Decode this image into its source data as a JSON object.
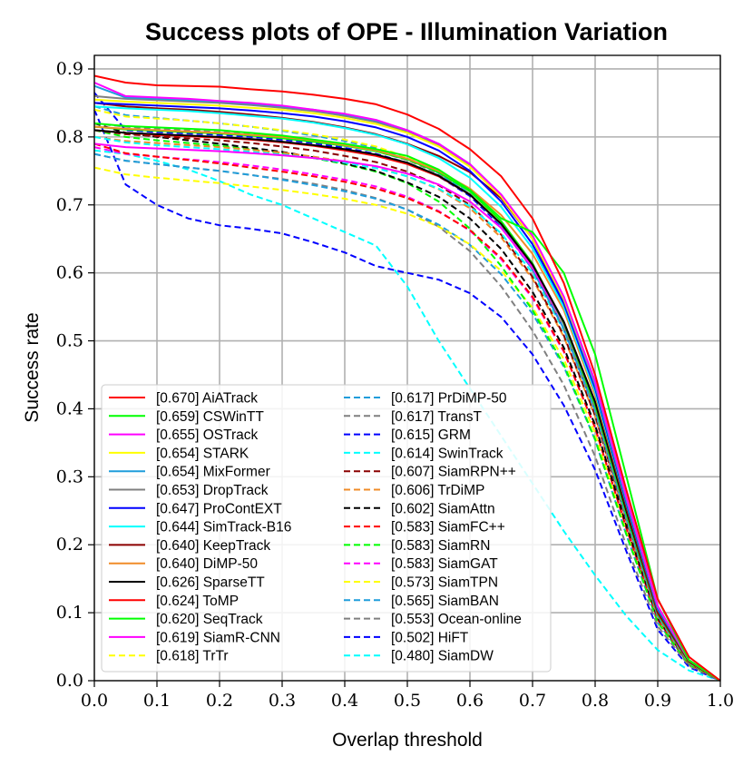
{
  "chart_data": {
    "type": "line",
    "title": "Success plots of OPE - Illumination Variation",
    "xlabel": "Overlap threshold",
    "ylabel": "Success rate",
    "xlim": [
      0.0,
      1.0
    ],
    "ylim": [
      0.0,
      0.92
    ],
    "xticks": [
      "0.0",
      "0.1",
      "0.2",
      "0.3",
      "0.4",
      "0.5",
      "0.6",
      "0.7",
      "0.8",
      "0.9",
      "1.0"
    ],
    "yticks": [
      "0.0",
      "0.1",
      "0.2",
      "0.3",
      "0.4",
      "0.5",
      "0.6",
      "0.7",
      "0.8",
      "0.9"
    ],
    "grid": true,
    "legend_position": "lower-left",
    "x": [
      0,
      0.05,
      0.1,
      0.15,
      0.2,
      0.25,
      0.3,
      0.35,
      0.4,
      0.45,
      0.5,
      0.55,
      0.6,
      0.65,
      0.7,
      0.75,
      0.8,
      0.85,
      0.9,
      0.95,
      1.0
    ],
    "series": [
      {
        "name": "[0.670] AiATrack",
        "color": "#ff0000",
        "dash": "solid",
        "values": [
          0.89,
          0.88,
          0.876,
          0.875,
          0.874,
          0.87,
          0.867,
          0.862,
          0.856,
          0.848,
          0.833,
          0.812,
          0.782,
          0.742,
          0.68,
          0.585,
          0.45,
          0.28,
          0.12,
          0.035,
          0.0
        ]
      },
      {
        "name": "[0.659] CSWinTT",
        "color": "#00ff00",
        "dash": "solid",
        "values": [
          0.82,
          0.816,
          0.814,
          0.812,
          0.81,
          0.806,
          0.802,
          0.796,
          0.79,
          0.782,
          0.772,
          0.752,
          0.722,
          0.68,
          0.66,
          0.6,
          0.48,
          0.3,
          0.12,
          0.03,
          0.0
        ]
      },
      {
        "name": "[0.655] OSTrack",
        "color": "#ff00ff",
        "dash": "solid",
        "values": [
          0.88,
          0.86,
          0.858,
          0.856,
          0.853,
          0.85,
          0.846,
          0.84,
          0.834,
          0.825,
          0.81,
          0.79,
          0.76,
          0.715,
          0.655,
          0.565,
          0.44,
          0.27,
          0.11,
          0.03,
          0.0
        ]
      },
      {
        "name": "[0.654] STARK",
        "color": "#ffff00",
        "dash": "solid",
        "values": [
          0.855,
          0.852,
          0.85,
          0.848,
          0.846,
          0.843,
          0.84,
          0.835,
          0.828,
          0.819,
          0.806,
          0.786,
          0.756,
          0.712,
          0.65,
          0.562,
          0.44,
          0.27,
          0.11,
          0.03,
          0.0
        ]
      },
      {
        "name": "[0.654] MixFormer",
        "color": "#1f9ddb",
        "dash": "solid",
        "values": [
          0.875,
          0.858,
          0.856,
          0.854,
          0.852,
          0.849,
          0.845,
          0.84,
          0.833,
          0.824,
          0.81,
          0.79,
          0.76,
          0.715,
          0.652,
          0.562,
          0.435,
          0.265,
          0.108,
          0.03,
          0.0
        ]
      },
      {
        "name": "[0.653] DropTrack",
        "color": "#808080",
        "dash": "solid",
        "values": [
          0.86,
          0.856,
          0.854,
          0.852,
          0.85,
          0.847,
          0.843,
          0.838,
          0.831,
          0.822,
          0.808,
          0.788,
          0.758,
          0.713,
          0.65,
          0.56,
          0.435,
          0.265,
          0.108,
          0.03,
          0.0
        ]
      },
      {
        "name": "[0.647] ProContEXT",
        "color": "#0000ff",
        "dash": "solid",
        "values": [
          0.85,
          0.848,
          0.846,
          0.844,
          0.842,
          0.839,
          0.835,
          0.83,
          0.823,
          0.814,
          0.8,
          0.78,
          0.75,
          0.705,
          0.642,
          0.555,
          0.43,
          0.262,
          0.106,
          0.03,
          0.0
        ]
      },
      {
        "name": "[0.644] SimTrack-B16",
        "color": "#00ffff",
        "dash": "solid",
        "values": [
          0.845,
          0.842,
          0.84,
          0.838,
          0.835,
          0.831,
          0.827,
          0.821,
          0.813,
          0.803,
          0.789,
          0.769,
          0.74,
          0.697,
          0.636,
          0.55,
          0.425,
          0.26,
          0.105,
          0.03,
          0.0
        ]
      },
      {
        "name": "[0.640] KeepTrack",
        "color": "#8b0000",
        "dash": "solid",
        "values": [
          0.85,
          0.845,
          0.842,
          0.84,
          0.837,
          0.833,
          0.828,
          0.822,
          0.814,
          0.804,
          0.79,
          0.772,
          0.748,
          0.71,
          0.65,
          0.555,
          0.425,
          0.255,
          0.1,
          0.028,
          0.0
        ]
      },
      {
        "name": "[0.640] DiMP-50",
        "color": "#f08c28",
        "dash": "solid",
        "values": [
          0.815,
          0.812,
          0.81,
          0.808,
          0.806,
          0.803,
          0.8,
          0.795,
          0.788,
          0.78,
          0.768,
          0.75,
          0.724,
          0.685,
          0.628,
          0.545,
          0.42,
          0.255,
          0.1,
          0.028,
          0.0
        ]
      },
      {
        "name": "[0.626] SparseTT",
        "color": "#000000",
        "dash": "solid",
        "values": [
          0.81,
          0.806,
          0.804,
          0.802,
          0.8,
          0.797,
          0.793,
          0.788,
          0.782,
          0.774,
          0.762,
          0.743,
          0.715,
          0.672,
          0.612,
          0.528,
          0.41,
          0.25,
          0.1,
          0.028,
          0.0
        ]
      },
      {
        "name": "[0.624] ToMP",
        "color": "#ff0000",
        "dash": "solid",
        "values": [
          0.81,
          0.806,
          0.803,
          0.801,
          0.799,
          0.796,
          0.792,
          0.787,
          0.78,
          0.772,
          0.76,
          0.742,
          0.715,
          0.672,
          0.612,
          0.528,
          0.41,
          0.25,
          0.1,
          0.028,
          0.0
        ]
      },
      {
        "name": "[0.620] SeqTrack",
        "color": "#00ff00",
        "dash": "solid",
        "values": [
          0.815,
          0.811,
          0.809,
          0.807,
          0.805,
          0.802,
          0.798,
          0.793,
          0.787,
          0.779,
          0.767,
          0.748,
          0.72,
          0.676,
          0.614,
          0.526,
          0.405,
          0.245,
          0.098,
          0.027,
          0.0
        ]
      },
      {
        "name": "[0.619] SiamR-CNN",
        "color": "#ff00ff",
        "dash": "solid",
        "values": [
          0.79,
          0.785,
          0.783,
          0.781,
          0.779,
          0.776,
          0.773,
          0.769,
          0.764,
          0.757,
          0.746,
          0.73,
          0.705,
          0.666,
          0.608,
          0.525,
          0.405,
          0.245,
          0.098,
          0.027,
          0.0
        ]
      },
      {
        "name": "[0.618] TrTr",
        "color": "#ffff00",
        "dash": "dashed",
        "values": [
          0.84,
          0.83,
          0.827,
          0.824,
          0.82,
          0.815,
          0.81,
          0.804,
          0.796,
          0.786,
          0.77,
          0.75,
          0.72,
          0.675,
          0.612,
          0.525,
          0.405,
          0.245,
          0.098,
          0.027,
          0.0
        ]
      },
      {
        "name": "[0.617] PrDiMP-50",
        "color": "#1f9ddb",
        "dash": "dashed",
        "values": [
          0.845,
          0.832,
          0.828,
          0.824,
          0.82,
          0.815,
          0.809,
          0.802,
          0.794,
          0.784,
          0.768,
          0.747,
          0.716,
          0.67,
          0.605,
          0.518,
          0.398,
          0.24,
          0.096,
          0.027,
          0.0
        ]
      },
      {
        "name": "[0.617] TransT",
        "color": "#808080",
        "dash": "dashed",
        "values": [
          0.82,
          0.815,
          0.812,
          0.81,
          0.807,
          0.804,
          0.8,
          0.795,
          0.788,
          0.779,
          0.766,
          0.746,
          0.716,
          0.67,
          0.605,
          0.518,
          0.398,
          0.24,
          0.096,
          0.027,
          0.0
        ]
      },
      {
        "name": "[0.615] GRM",
        "color": "#0000ff",
        "dash": "dashed",
        "values": [
          0.865,
          0.81,
          0.807,
          0.805,
          0.803,
          0.8,
          0.796,
          0.791,
          0.784,
          0.775,
          0.762,
          0.742,
          0.713,
          0.668,
          0.605,
          0.518,
          0.398,
          0.24,
          0.096,
          0.027,
          0.0
        ]
      },
      {
        "name": "[0.614] SwinTrack",
        "color": "#00ffff",
        "dash": "dashed",
        "values": [
          0.8,
          0.792,
          0.788,
          0.785,
          0.782,
          0.778,
          0.774,
          0.769,
          0.762,
          0.754,
          0.742,
          0.724,
          0.698,
          0.658,
          0.6,
          0.515,
          0.396,
          0.238,
          0.095,
          0.026,
          0.0
        ]
      },
      {
        "name": "[0.607] SiamRPN++",
        "color": "#8b0000",
        "dash": "dashed",
        "values": [
          0.81,
          0.804,
          0.801,
          0.798,
          0.795,
          0.791,
          0.786,
          0.78,
          0.772,
          0.763,
          0.749,
          0.729,
          0.7,
          0.656,
          0.594,
          0.508,
          0.39,
          0.235,
          0.094,
          0.026,
          0.0
        ]
      },
      {
        "name": "[0.606] TrDiMP",
        "color": "#f08c28",
        "dash": "dashed",
        "values": [
          0.8,
          0.794,
          0.791,
          0.788,
          0.785,
          0.781,
          0.777,
          0.771,
          0.764,
          0.755,
          0.742,
          0.723,
          0.695,
          0.652,
          0.591,
          0.506,
          0.389,
          0.234,
          0.093,
          0.026,
          0.0
        ]
      },
      {
        "name": "[0.602] SiamAttn",
        "color": "#000000",
        "dash": "dashed",
        "values": [
          0.82,
          0.806,
          0.8,
          0.795,
          0.79,
          0.784,
          0.778,
          0.77,
          0.761,
          0.75,
          0.733,
          0.712,
          0.68,
          0.635,
          0.572,
          0.49,
          0.376,
          0.228,
          0.092,
          0.026,
          0.0
        ]
      },
      {
        "name": "[0.583] SiamFC++",
        "color": "#ff0000",
        "dash": "dashed",
        "values": [
          0.79,
          0.776,
          0.771,
          0.766,
          0.761,
          0.755,
          0.749,
          0.742,
          0.734,
          0.724,
          0.71,
          0.69,
          0.663,
          0.622,
          0.565,
          0.485,
          0.372,
          0.224,
          0.09,
          0.025,
          0.0
        ]
      },
      {
        "name": "[0.583] SiamRN",
        "color": "#00ff00",
        "dash": "dashed",
        "values": [
          0.81,
          0.8,
          0.795,
          0.791,
          0.787,
          0.782,
          0.776,
          0.769,
          0.76,
          0.749,
          0.732,
          0.705,
          0.665,
          0.61,
          0.545,
          0.465,
          0.355,
          0.215,
          0.086,
          0.024,
          0.0
        ]
      },
      {
        "name": "[0.583] SiamGAT",
        "color": "#ff00ff",
        "dash": "dashed",
        "values": [
          0.785,
          0.775,
          0.771,
          0.767,
          0.763,
          0.758,
          0.752,
          0.745,
          0.737,
          0.727,
          0.712,
          0.691,
          0.662,
          0.62,
          0.563,
          0.484,
          0.372,
          0.224,
          0.09,
          0.025,
          0.0
        ]
      },
      {
        "name": "[0.573] SiamTPN",
        "color": "#ffff00",
        "dash": "dashed",
        "values": [
          0.755,
          0.745,
          0.74,
          0.736,
          0.732,
          0.727,
          0.722,
          0.716,
          0.709,
          0.7,
          0.687,
          0.668,
          0.642,
          0.603,
          0.549,
          0.473,
          0.364,
          0.22,
          0.088,
          0.024,
          0.0
        ]
      },
      {
        "name": "[0.565] SiamBAN",
        "color": "#1f9ddb",
        "dash": "dashed",
        "values": [
          0.775,
          0.765,
          0.76,
          0.755,
          0.75,
          0.744,
          0.737,
          0.729,
          0.72,
          0.709,
          0.693,
          0.671,
          0.641,
          0.598,
          0.54,
          0.462,
          0.354,
          0.214,
          0.086,
          0.024,
          0.0
        ]
      },
      {
        "name": "[0.553] Ocean-online",
        "color": "#808080",
        "dash": "dashed",
        "values": [
          0.775,
          0.765,
          0.76,
          0.755,
          0.75,
          0.744,
          0.738,
          0.731,
          0.722,
          0.71,
          0.693,
          0.668,
          0.632,
          0.58,
          0.515,
          0.435,
          0.33,
          0.198,
          0.08,
          0.022,
          0.0
        ]
      },
      {
        "name": "[0.502] HiFT",
        "color": "#0000ff",
        "dash": "dashed",
        "values": [
          0.84,
          0.73,
          0.7,
          0.68,
          0.67,
          0.665,
          0.658,
          0.645,
          0.63,
          0.61,
          0.6,
          0.59,
          0.57,
          0.535,
          0.48,
          0.405,
          0.31,
          0.19,
          0.075,
          0.02,
          0.0
        ]
      },
      {
        "name": "[0.480] SiamDW",
        "color": "#00ffff",
        "dash": "dashed",
        "values": [
          0.78,
          0.775,
          0.765,
          0.752,
          0.735,
          0.715,
          0.7,
          0.68,
          0.66,
          0.64,
          0.58,
          0.5,
          0.43,
          0.36,
          0.29,
          0.22,
          0.155,
          0.095,
          0.045,
          0.015,
          0.0
        ]
      }
    ]
  }
}
